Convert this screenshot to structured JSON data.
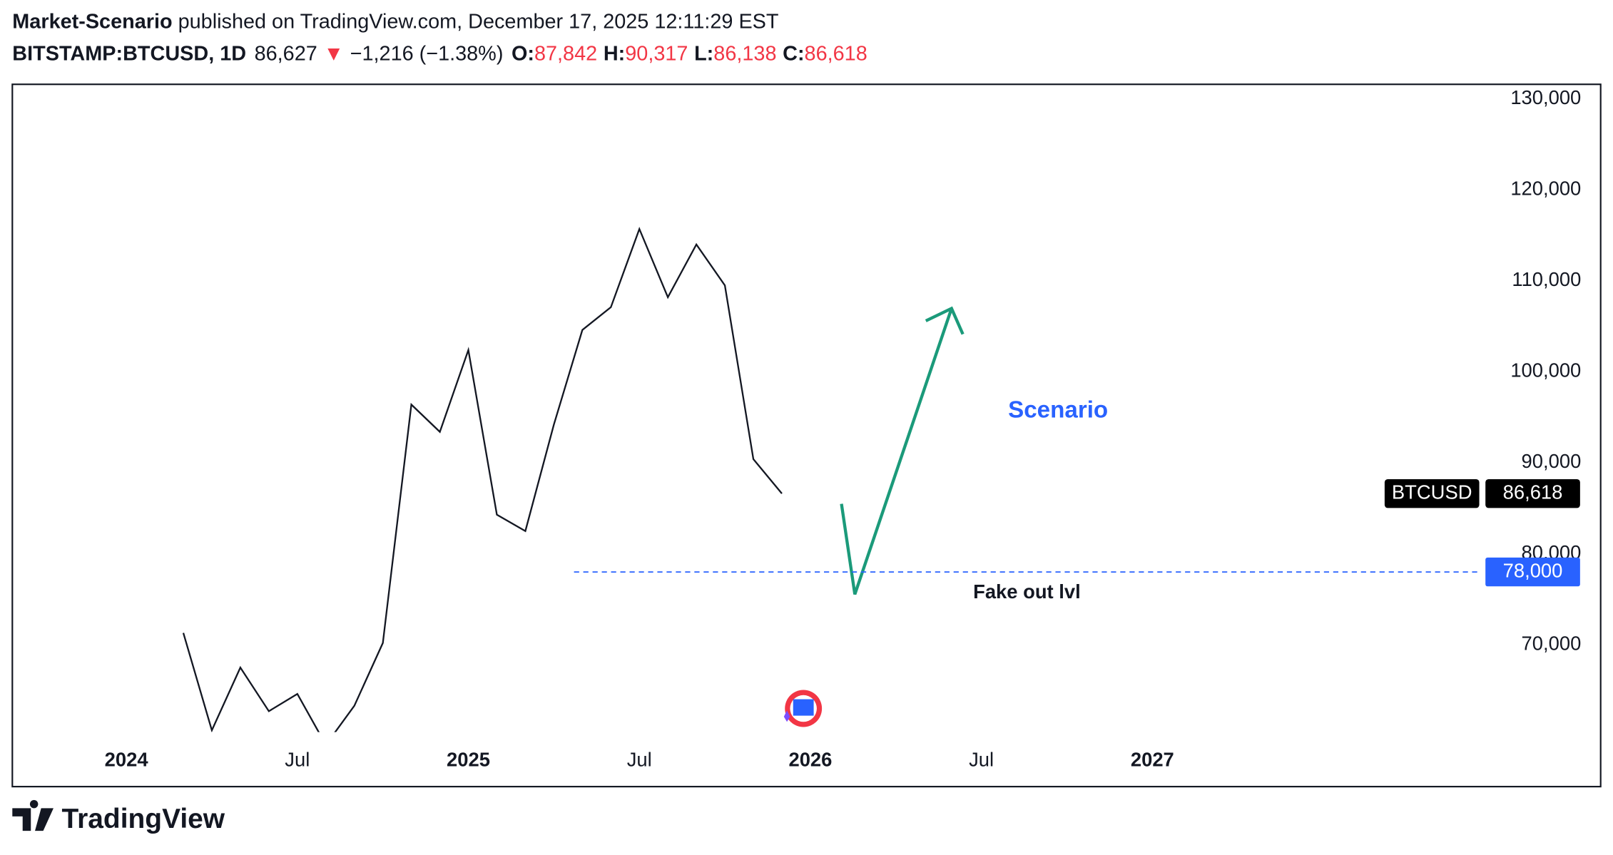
{
  "header": {
    "author": "Market-Scenario",
    "published": " published on TradingView.com, December 17, 2025 12:11:29 EST",
    "symbol": "BITSTAMP:BTCUSD, 1D",
    "last": "86,627",
    "arrow": "▼",
    "change": "−1,216 (−1.38%)",
    "o_label": "O:",
    "o": "87,842",
    "h_label": "H:",
    "h": "90,317",
    "l_label": "L:",
    "l": "86,138",
    "c_label": "C:",
    "c": "86,618"
  },
  "chart_data": {
    "type": "line",
    "x": [
      "2024-03",
      "2024-04",
      "2024-05",
      "2024-06",
      "2024-07",
      "2024-08",
      "2024-09",
      "2024-10",
      "2024-11",
      "2024-12",
      "2025-01",
      "2025-02",
      "2025-03",
      "2025-04",
      "2025-05",
      "2025-06",
      "2025-07",
      "2025-08",
      "2025-09",
      "2025-10",
      "2025-11",
      "2025-12"
    ],
    "series": [
      {
        "name": "BTCUSD",
        "color": "#131722",
        "values": [
          71300,
          60600,
          67500,
          62700,
          64600,
          59000,
          63300,
          70200,
          96400,
          93400,
          102400,
          84300,
          82500,
          94200,
          104600,
          107100,
          115700,
          108200,
          114000,
          109500,
          90400,
          86618
        ]
      }
    ],
    "last_price_label": "86,618",
    "xlim": [
      "2023-09",
      "2027-12"
    ],
    "xticks": [
      {
        "value": "2024-01",
        "label": "2024"
      },
      {
        "value": "2024-07",
        "label": "Jul"
      },
      {
        "value": "2025-01",
        "label": "2025"
      },
      {
        "value": "2025-07",
        "label": "Jul"
      },
      {
        "value": "2026-01",
        "label": "2026"
      },
      {
        "value": "2026-07",
        "label": "Jul"
      },
      {
        "value": "2027-01",
        "label": "2027"
      }
    ],
    "ylim": [
      60400,
      131600
    ],
    "yticks": [
      {
        "value": 70000,
        "label": "70,000"
      },
      {
        "value": 80000,
        "label": "80,000"
      },
      {
        "value": 90000,
        "label": "90,000"
      },
      {
        "value": 100000,
        "label": "100,000"
      },
      {
        "value": 110000,
        "label": "110,000"
      },
      {
        "value": 120000,
        "label": "120,000"
      },
      {
        "value": 130000,
        "label": "130,000"
      }
    ],
    "level": {
      "value": 78000,
      "label": "78,000",
      "color": "#2962ff"
    },
    "annotations": {
      "scenario": "Scenario",
      "fakeout": "Fake out lvl"
    },
    "footer": "TradingView"
  }
}
